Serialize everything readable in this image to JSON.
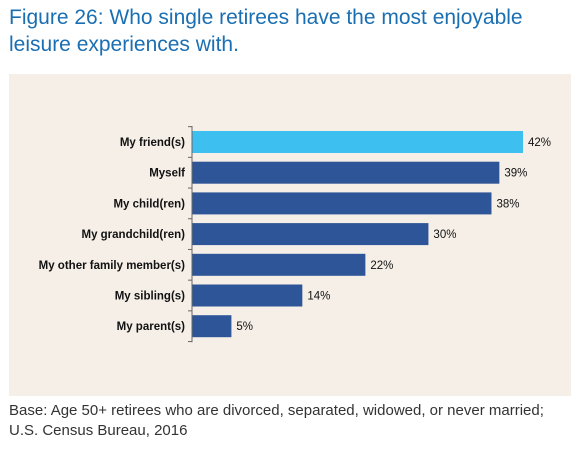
{
  "title": "Figure 26: Who single retirees have the most enjoyable leisure experiences with.",
  "footnote": "Base: Age 50+ retirees who are divorced, separated, widowed, or never married; U.S. Census Bureau, 2016",
  "colors": {
    "title": "#1a6fb3",
    "panel_background": "#f5efe8",
    "bar_highlight": "#3dbff0",
    "bar_default": "#2e5597",
    "axis": "#666666",
    "label_text": "#111111"
  },
  "chart_data": {
    "type": "bar",
    "orientation": "horizontal",
    "categories": [
      "My friend(s)",
      "Myself",
      "My child(ren)",
      "My grandchild(ren)",
      "My other family member(s)",
      "My sibling(s)",
      "My parent(s)"
    ],
    "values": [
      42,
      39,
      38,
      30,
      22,
      14,
      5
    ],
    "value_labels": [
      "42%",
      "39%",
      "38%",
      "30%",
      "22%",
      "14%",
      "5%"
    ],
    "unit": "%",
    "highlight_index": 0,
    "xlim": [
      0,
      42
    ],
    "grid": false,
    "legend": "none"
  }
}
